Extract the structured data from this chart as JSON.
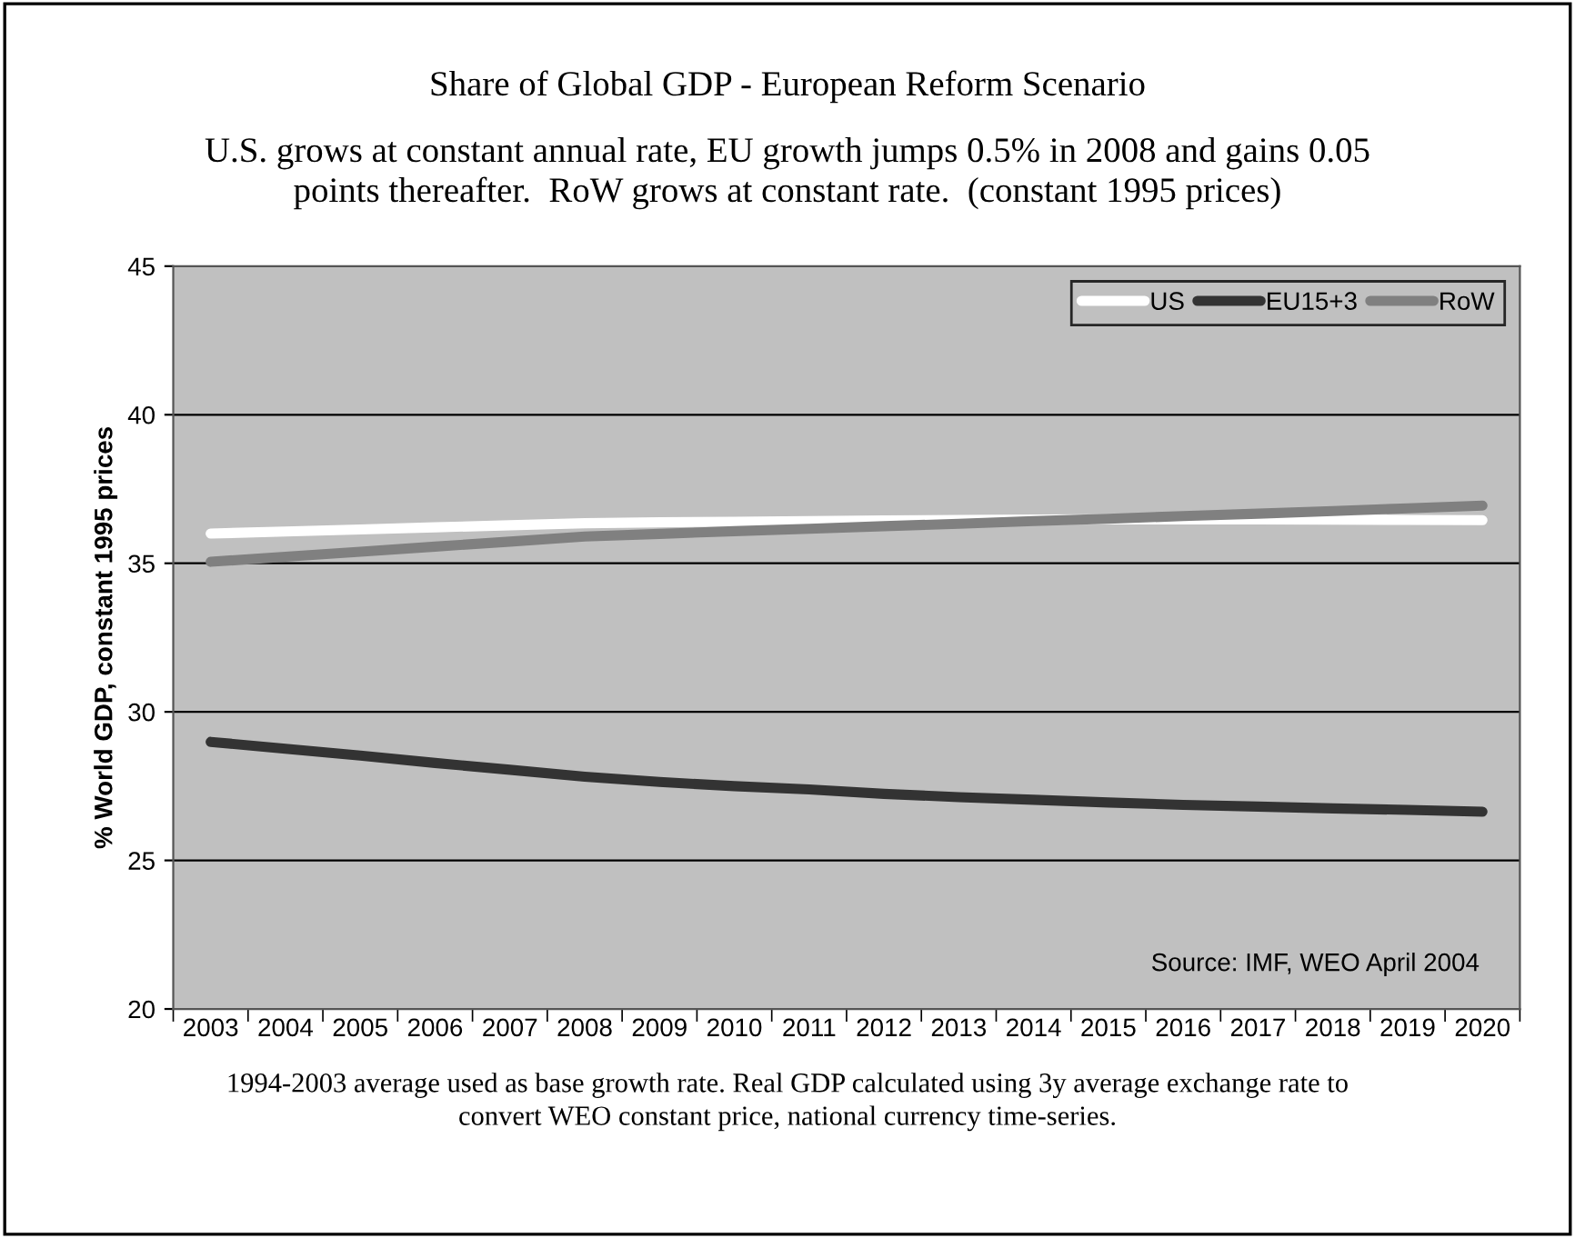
{
  "chart_data": {
    "type": "line",
    "title": "Share of Global GDP - European Reform Scenario",
    "subtitle": "U.S. grows at constant annual rate, EU growth jumps 0.5% in 2008 and gains 0.05\npoints thereafter.  RoW grows at constant rate.  (constant 1995 prices)",
    "ylabel": "% World GDP, constant 1995 prices",
    "categories": [
      "2003",
      "2004",
      "2005",
      "2006",
      "2007",
      "2008",
      "2009",
      "2010",
      "2011",
      "2012",
      "2013",
      "2014",
      "2015",
      "2016",
      "2017",
      "2018",
      "2019",
      "2020"
    ],
    "series": [
      {
        "name": "US",
        "color": "#ffffff",
        "values": [
          36.0,
          36.07,
          36.14,
          36.21,
          36.28,
          36.35,
          36.38,
          36.4,
          36.42,
          36.44,
          36.46,
          36.47,
          36.48,
          36.48,
          36.48,
          36.47,
          36.46,
          36.45
        ]
      },
      {
        "name": "EU15+3",
        "color": "#333333",
        "values": [
          28.99,
          28.76,
          28.53,
          28.28,
          28.05,
          27.82,
          27.64,
          27.5,
          27.39,
          27.24,
          27.13,
          27.04,
          26.95,
          26.87,
          26.81,
          26.75,
          26.7,
          26.64
        ]
      },
      {
        "name": "RoW",
        "color": "#808080",
        "values": [
          35.05,
          35.22,
          35.39,
          35.56,
          35.73,
          35.9,
          35.99,
          36.08,
          36.16,
          36.25,
          36.33,
          36.42,
          36.5,
          36.59,
          36.67,
          36.76,
          36.85,
          36.94
        ]
      }
    ],
    "ylim": [
      20,
      45
    ],
    "yticks": [
      20,
      25,
      30,
      35,
      40,
      45
    ],
    "grid": "y",
    "legend": "top right",
    "marker": "none",
    "line_style": "solid",
    "annotations": [
      "Source: IMF, WEO April 2004",
      "1994-2003 average used as base growth rate. Real GDP calculated using 3y average exchange rate to\nconvert WEO constant price, national currency time-series."
    ]
  }
}
